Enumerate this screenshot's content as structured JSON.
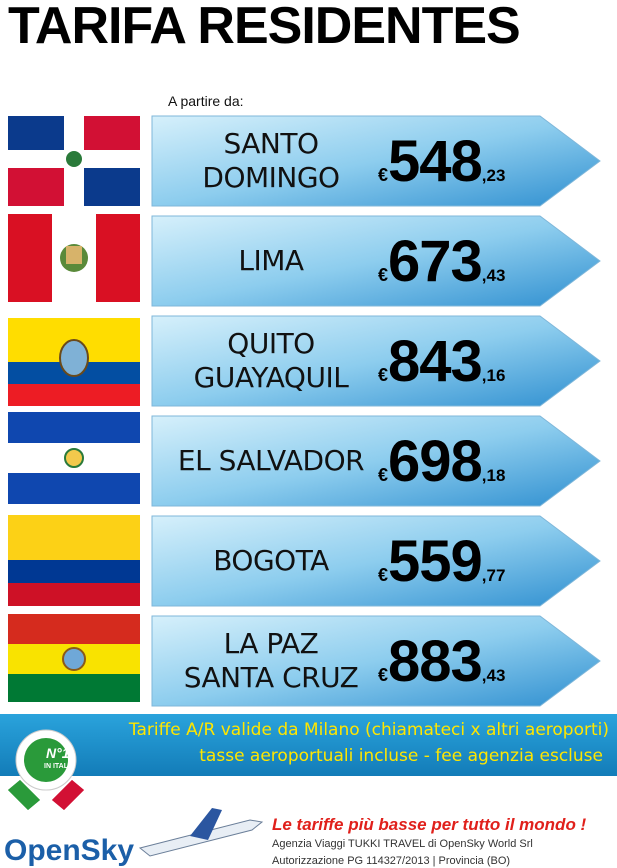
{
  "header": {
    "title": "TARIFA RESIDENTES",
    "subtitle": "A partire da:"
  },
  "destinations": [
    {
      "name": [
        "SANTO",
        "DOMINGO"
      ],
      "currency": "€",
      "price": "548",
      "cents": ",23"
    },
    {
      "name": [
        "LIMA"
      ],
      "currency": "€",
      "price": "673",
      "cents": ",43"
    },
    {
      "name": [
        "QUITO",
        "GUAYAQUIL"
      ],
      "currency": "€",
      "price": "843",
      "cents": ",16"
    },
    {
      "name": [
        "EL SALVADOR"
      ],
      "currency": "€",
      "price": "698",
      "cents": ",18"
    },
    {
      "name": [
        "BOGOTA"
      ],
      "currency": "€",
      "price": "559",
      "cents": ",77"
    },
    {
      "name": [
        "LA PAZ",
        "SANTA CRUZ"
      ],
      "currency": "€",
      "price": "883",
      "cents": ",43"
    }
  ],
  "footer": {
    "banner": [
      "Tariffe A/R valide da Milano (chiamateci x altri aeroporti)",
      "tasse aeroportuali incluse  - fee agenzia escluse"
    ],
    "badge": [
      "N°1",
      "IN ITALIA"
    ],
    "slogan": "Le tariffe più basse per tutto il mondo !",
    "agency": [
      "Agenzia Viaggi TUKKI TRAVEL di OpenSky World Srl",
      "Autorizzazione PG 114327/2013 | Provincia (BO)"
    ],
    "logo": "OpenSky"
  }
}
